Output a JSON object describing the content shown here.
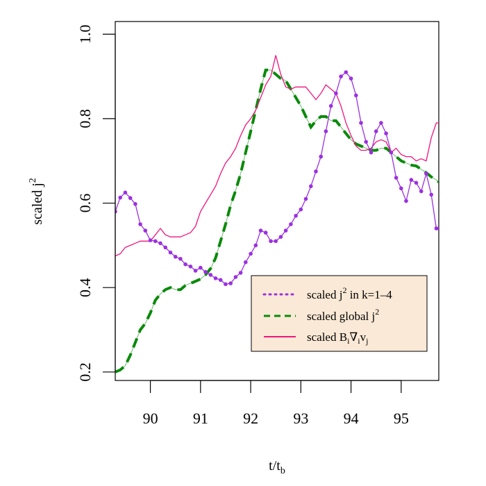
{
  "chart_data": {
    "type": "line",
    "title": "",
    "xlabel": {
      "main": "t/t",
      "sub": "b"
    },
    "ylabel": {
      "main": "scaled j",
      "sup": "2"
    },
    "xlim": [
      89.3,
      95.75
    ],
    "ylim": [
      0.18,
      1.03
    ],
    "xticks": [
      "90",
      "91",
      "92",
      "93",
      "94",
      "95"
    ],
    "yticks": [
      "0.2",
      "0.4",
      "0.6",
      "0.8",
      "1.0"
    ],
    "grid": false,
    "legend_position": "bottom-right",
    "legend_background": "#FAE9D6",
    "series": [
      {
        "key": "local",
        "legend": {
          "pre": "scaled j",
          "sup": "2",
          "post": " in k=1–4"
        },
        "color": "#9B30E0",
        "style": "dotted-with-markers",
        "x": [
          89.3,
          89.4,
          89.5,
          89.6,
          89.7,
          89.8,
          89.9,
          90.0,
          90.1,
          90.2,
          90.3,
          90.4,
          90.5,
          90.6,
          90.7,
          90.8,
          90.9,
          91.0,
          91.1,
          91.2,
          91.3,
          91.4,
          91.5,
          91.6,
          91.7,
          91.8,
          91.9,
          92.0,
          92.1,
          92.2,
          92.3,
          92.4,
          92.5,
          92.6,
          92.7,
          92.8,
          92.9,
          93.0,
          93.1,
          93.2,
          93.3,
          93.4,
          93.5,
          93.6,
          93.7,
          93.8,
          93.9,
          94.0,
          94.1,
          94.2,
          94.3,
          94.4,
          94.5,
          94.6,
          94.7,
          94.8,
          94.9,
          95.0,
          95.1,
          95.2,
          95.3,
          95.4,
          95.5,
          95.6,
          95.7,
          95.75
        ],
        "y": [
          0.58,
          0.613,
          0.625,
          0.612,
          0.598,
          0.55,
          0.535,
          0.512,
          0.51,
          0.505,
          0.495,
          0.483,
          0.473,
          0.468,
          0.455,
          0.45,
          0.44,
          0.447,
          0.437,
          0.43,
          0.422,
          0.418,
          0.408,
          0.41,
          0.425,
          0.435,
          0.46,
          0.48,
          0.5,
          0.535,
          0.53,
          0.51,
          0.51,
          0.52,
          0.535,
          0.55,
          0.57,
          0.585,
          0.61,
          0.64,
          0.675,
          0.71,
          0.77,
          0.83,
          0.86,
          0.9,
          0.91,
          0.895,
          0.855,
          0.79,
          0.745,
          0.72,
          0.77,
          0.79,
          0.765,
          0.72,
          0.66,
          0.635,
          0.605,
          0.655,
          0.648,
          0.628,
          0.67,
          0.62,
          0.54,
          0.54
        ]
      },
      {
        "key": "global",
        "legend": {
          "pre": "scaled global j",
          "sup": "2",
          "post": ""
        },
        "color": "#0A8A0A",
        "style": "dashed",
        "x": [
          89.3,
          89.4,
          89.5,
          89.6,
          89.7,
          89.8,
          89.9,
          90.0,
          90.1,
          90.2,
          90.3,
          90.4,
          90.5,
          90.6,
          90.7,
          90.8,
          90.9,
          91.0,
          91.1,
          91.2,
          91.3,
          91.4,
          91.5,
          91.6,
          91.7,
          91.8,
          91.9,
          92.0,
          92.1,
          92.2,
          92.3,
          92.4,
          92.5,
          92.6,
          92.7,
          92.8,
          92.9,
          93.0,
          93.1,
          93.2,
          93.3,
          93.4,
          93.5,
          93.6,
          93.7,
          93.8,
          93.9,
          94.0,
          94.1,
          94.2,
          94.3,
          94.4,
          94.5,
          94.6,
          94.7,
          94.8,
          94.9,
          95.0,
          95.1,
          95.2,
          95.3,
          95.4,
          95.5,
          95.6,
          95.7,
          95.75
        ],
        "y": [
          0.2,
          0.205,
          0.215,
          0.24,
          0.27,
          0.3,
          0.315,
          0.34,
          0.37,
          0.385,
          0.395,
          0.4,
          0.395,
          0.395,
          0.405,
          0.41,
          0.415,
          0.42,
          0.43,
          0.445,
          0.47,
          0.51,
          0.55,
          0.595,
          0.63,
          0.67,
          0.72,
          0.77,
          0.82,
          0.87,
          0.915,
          0.915,
          0.905,
          0.895,
          0.89,
          0.87,
          0.85,
          0.83,
          0.805,
          0.78,
          0.795,
          0.805,
          0.805,
          0.795,
          0.795,
          0.78,
          0.765,
          0.75,
          0.74,
          0.735,
          0.73,
          0.725,
          0.725,
          0.73,
          0.73,
          0.72,
          0.71,
          0.7,
          0.695,
          0.69,
          0.688,
          0.68,
          0.672,
          0.662,
          0.655,
          0.65
        ]
      },
      {
        "key": "shear",
        "legend": {
          "pre": "scaled B",
          "sub1": "i",
          "mid": "∇",
          "sub2": "i",
          "mid2": "v",
          "sub3": "j"
        },
        "color": "#F0147C",
        "style": "solid",
        "x": [
          89.3,
          89.4,
          89.5,
          89.6,
          89.7,
          89.8,
          89.9,
          90.0,
          90.1,
          90.2,
          90.3,
          90.4,
          90.5,
          90.6,
          90.7,
          90.8,
          90.9,
          91.0,
          91.1,
          91.2,
          91.3,
          91.4,
          91.5,
          91.6,
          91.7,
          91.8,
          91.9,
          92.0,
          92.1,
          92.2,
          92.3,
          92.4,
          92.5,
          92.6,
          92.7,
          92.8,
          92.9,
          93.0,
          93.1,
          93.2,
          93.3,
          93.4,
          93.5,
          93.6,
          93.7,
          93.8,
          93.9,
          94.0,
          94.1,
          94.2,
          94.3,
          94.4,
          94.5,
          94.6,
          94.7,
          94.8,
          94.9,
          95.0,
          95.1,
          95.2,
          95.3,
          95.4,
          95.5,
          95.6,
          95.7,
          95.75
        ],
        "y": [
          0.475,
          0.48,
          0.495,
          0.5,
          0.505,
          0.51,
          0.51,
          0.51,
          0.525,
          0.54,
          0.525,
          0.52,
          0.52,
          0.52,
          0.525,
          0.53,
          0.545,
          0.58,
          0.6,
          0.62,
          0.64,
          0.67,
          0.695,
          0.71,
          0.73,
          0.76,
          0.785,
          0.8,
          0.82,
          0.85,
          0.88,
          0.9,
          0.95,
          0.905,
          0.875,
          0.87,
          0.875,
          0.875,
          0.875,
          0.86,
          0.845,
          0.86,
          0.88,
          0.87,
          0.86,
          0.83,
          0.79,
          0.76,
          0.735,
          0.725,
          0.725,
          0.73,
          0.745,
          0.75,
          0.745,
          0.72,
          0.73,
          0.715,
          0.71,
          0.71,
          0.7,
          0.705,
          0.7,
          0.755,
          0.79,
          0.79
        ]
      }
    ]
  }
}
